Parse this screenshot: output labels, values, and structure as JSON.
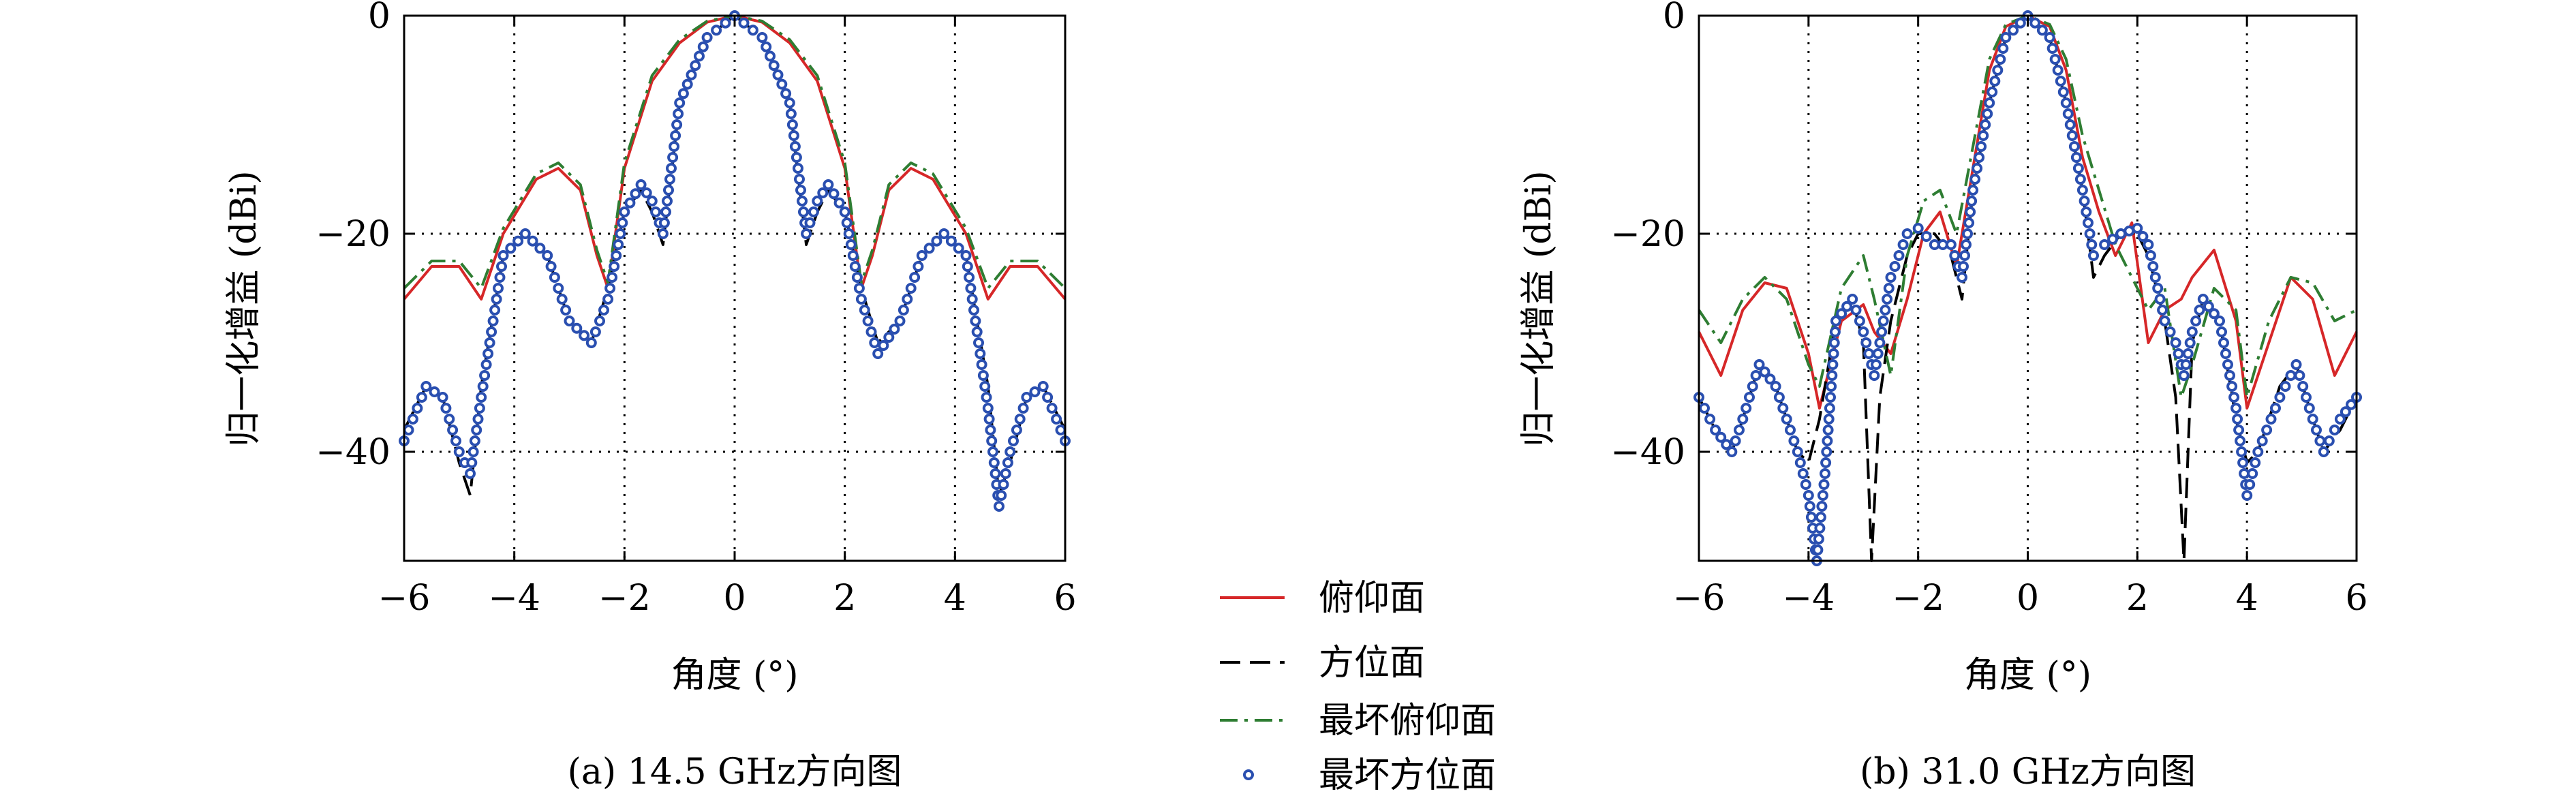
{
  "legend": {
    "entries": [
      {
        "label": "俯仰面",
        "color": "#d62728",
        "style": "solid"
      },
      {
        "label": "方位面",
        "color": "#000000",
        "style": "dashed"
      },
      {
        "label": "最坏俯仰面",
        "color": "#2e7d32",
        "style": "dashdot"
      },
      {
        "label": "最坏方位面",
        "color": "#2a4fb0",
        "style": "circles"
      }
    ],
    "placement": "bottom-center between panels"
  },
  "chart_data": [
    {
      "type": "line",
      "caption": "(a) 14.5 GHz方向图",
      "xlabel": "角度 (°)",
      "ylabel": "归一化增益 (dBi)",
      "xlim": [
        -6,
        6
      ],
      "ylim": [
        -50,
        0
      ],
      "xticks": [
        -6,
        -4,
        -2,
        0,
        2,
        4,
        6
      ],
      "yticks": [
        0,
        -20,
        -40
      ],
      "xtick_labels": [
        "−6",
        "−4",
        "−2",
        "0",
        "2",
        "4",
        "6"
      ],
      "ytick_labels": [
        "0",
        "−20",
        "−40"
      ],
      "grid": "dotted at ticks",
      "series": [
        {
          "name": "俯仰面",
          "color": "#d62728",
          "style": "solid",
          "x": [
            -6,
            -5.5,
            -5,
            -4.6,
            -4.2,
            -3.6,
            -3.2,
            -2.8,
            -2.5,
            -2.3,
            -2,
            -1.5,
            -1,
            -0.5,
            0,
            0.5,
            1,
            1.5,
            2,
            2.3,
            2.5,
            2.8,
            3.2,
            3.6,
            4.2,
            4.6,
            5,
            5.5,
            6
          ],
          "y": [
            -26,
            -23,
            -23,
            -26,
            -20,
            -15,
            -14,
            -16,
            -22,
            -25,
            -14,
            -6,
            -2.5,
            -0.6,
            0,
            -0.6,
            -2.5,
            -6,
            -14,
            -25,
            -22,
            -16,
            -14,
            -15,
            -20,
            -26,
            -23,
            -23,
            -26
          ]
        },
        {
          "name": "方位面",
          "color": "#000000",
          "style": "dashed",
          "x": [
            -6,
            -5.6,
            -5.3,
            -5,
            -4.8,
            -4.6,
            -4.2,
            -3.8,
            -3.4,
            -3,
            -2.6,
            -2.3,
            -2,
            -1.7,
            -1.5,
            -1.3,
            -1,
            -0.5,
            0,
            0.5,
            1,
            1.3,
            1.5,
            1.7,
            2,
            2.3,
            2.6,
            3,
            3.4,
            3.8,
            4.2,
            4.6,
            4.8,
            5,
            5.3,
            5.6,
            6
          ],
          "y": [
            -38,
            -34,
            -35,
            -41,
            -44,
            -34,
            -22,
            -20,
            -22,
            -28,
            -30,
            -25,
            -18,
            -16,
            -18,
            -21,
            -8,
            -2,
            0,
            -2,
            -8,
            -21,
            -18,
            -16,
            -18,
            -25,
            -30,
            -28,
            -22,
            -20,
            -22,
            -34,
            -44,
            -41,
            -35,
            -34,
            -38
          ]
        },
        {
          "name": "最坏俯仰面",
          "color": "#2e7d32",
          "style": "dashdot",
          "x": [
            -6,
            -5.5,
            -5,
            -4.6,
            -4.2,
            -3.6,
            -3.2,
            -2.8,
            -2.5,
            -2.3,
            -2,
            -1.5,
            -1,
            -0.5,
            0,
            0.5,
            1,
            1.5,
            2,
            2.3,
            2.5,
            2.8,
            3.2,
            3.6,
            4.2,
            4.6,
            5,
            5.5,
            6
          ],
          "y": [
            -25,
            -22.5,
            -22.5,
            -25,
            -19.5,
            -14.5,
            -13.5,
            -15.5,
            -21.5,
            -24.5,
            -13.5,
            -5.5,
            -2.2,
            -0.5,
            0,
            -0.5,
            -2.2,
            -5.5,
            -13.5,
            -24.5,
            -21.5,
            -15.5,
            -13.5,
            -14.5,
            -19.5,
            -25,
            -22.5,
            -22.5,
            -25
          ]
        },
        {
          "name": "最坏方位面",
          "color": "#2a4fb0",
          "style": "circles",
          "x": [
            -6,
            -5.6,
            -5.3,
            -5,
            -4.8,
            -4.6,
            -4.2,
            -3.8,
            -3.4,
            -3,
            -2.6,
            -2.3,
            -2,
            -1.7,
            -1.5,
            -1.3,
            -1,
            -0.5,
            0,
            0.5,
            1,
            1.3,
            1.5,
            1.7,
            2,
            2.3,
            2.6,
            3,
            3.4,
            3.8,
            4.2,
            4.6,
            4.8,
            5,
            5.3,
            5.6,
            6
          ],
          "y": [
            -39,
            -34,
            -35,
            -40,
            -42,
            -35,
            -22,
            -20,
            -22,
            -28,
            -30,
            -26,
            -18,
            -15.5,
            -17,
            -20,
            -8,
            -2,
            0,
            -2,
            -8,
            -20,
            -17,
            -15.5,
            -18,
            -26,
            -31,
            -28,
            -22,
            -20,
            -22,
            -36,
            -45,
            -40,
            -35,
            -34,
            -39
          ]
        }
      ]
    },
    {
      "type": "line",
      "caption": "(b) 31.0 GHz方向图",
      "xlabel": "角度 (°)",
      "ylabel": "归一化增益 (dBi)",
      "xlim": [
        -6,
        6
      ],
      "ylim": [
        -50,
        0
      ],
      "xticks": [
        -6,
        -4,
        -2,
        0,
        2,
        4,
        6
      ],
      "yticks": [
        0,
        -20,
        -40
      ],
      "xtick_labels": [
        "−6",
        "−4",
        "−2",
        "0",
        "2",
        "4",
        "6"
      ],
      "ytick_labels": [
        "0",
        "−20",
        "−40"
      ],
      "grid": "dotted at ticks",
      "series": [
        {
          "name": "俯仰面",
          "color": "#d62728",
          "style": "solid",
          "x": [
            -6,
            -5.6,
            -5.2,
            -4.8,
            -4.4,
            -4,
            -3.8,
            -3.4,
            -3,
            -2.8,
            -2.5,
            -2.2,
            -1.9,
            -1.6,
            -1.3,
            -1,
            -0.7,
            -0.4,
            0,
            0.4,
            0.7,
            1,
            1.3,
            1.6,
            1.9,
            2.2,
            2.5,
            2.8,
            3,
            3.4,
            3.8,
            4,
            4.4,
            4.8,
            5.2,
            5.6,
            6
          ],
          "y": [
            -29,
            -33,
            -27,
            -24.5,
            -25,
            -31,
            -36,
            -28,
            -26.5,
            -29,
            -31,
            -26,
            -20,
            -18,
            -23,
            -14,
            -5,
            -1,
            0,
            -1,
            -5,
            -13,
            -18,
            -22,
            -19,
            -30,
            -27,
            -26,
            -24,
            -21.5,
            -28,
            -36,
            -30,
            -24,
            -26,
            -33,
            -29
          ]
        },
        {
          "name": "方位面",
          "color": "#000000",
          "style": "dashed",
          "x": [
            -6,
            -5.7,
            -5.4,
            -5.2,
            -4.9,
            -4.6,
            -4.2,
            -4,
            -3.8,
            -3.5,
            -3.2,
            -3,
            -2.85,
            -2.7,
            -2.5,
            -2.2,
            -2,
            -1.7,
            -1.4,
            -1.2,
            -1,
            -0.7,
            -0.4,
            0,
            0.4,
            0.7,
            1,
            1.2,
            1.4,
            1.7,
            2,
            2.2,
            2.5,
            2.7,
            2.85,
            3,
            3.2,
            3.5,
            3.8,
            4,
            4.2,
            4.6,
            4.9,
            5.2,
            5.4,
            5.7,
            6
          ],
          "y": [
            -35,
            -38,
            -40,
            -37,
            -32,
            -34,
            -40,
            -41,
            -37,
            -28,
            -26,
            -30,
            -50,
            -35,
            -28,
            -22,
            -20,
            -20,
            -22,
            -26,
            -16,
            -8,
            -2,
            0,
            -2,
            -8,
            -16,
            -24,
            -22,
            -20,
            -20,
            -22,
            -28,
            -35,
            -50,
            -30,
            -26,
            -28,
            -37,
            -41,
            -40,
            -34,
            -32,
            -37,
            -40,
            -38,
            -35
          ]
        },
        {
          "name": "最坏俯仰面",
          "color": "#2e7d32",
          "style": "dashdot",
          "x": [
            -6,
            -5.6,
            -5.2,
            -4.8,
            -4.4,
            -4,
            -3.8,
            -3.4,
            -3,
            -2.8,
            -2.5,
            -2.2,
            -1.9,
            -1.6,
            -1.3,
            -1,
            -0.7,
            -0.4,
            0,
            0.4,
            0.7,
            1,
            1.3,
            1.6,
            1.9,
            2.2,
            2.5,
            2.8,
            3,
            3.4,
            3.8,
            4,
            4.4,
            4.8,
            5.2,
            5.6,
            6
          ],
          "y": [
            -27,
            -30,
            -26,
            -24,
            -26,
            -32,
            -34,
            -25,
            -22,
            -26,
            -33,
            -22,
            -17,
            -16,
            -20,
            -12,
            -4,
            -0.8,
            0,
            -0.8,
            -4,
            -11,
            -16,
            -21,
            -24,
            -27,
            -25,
            -35,
            -32,
            -25,
            -27,
            -35,
            -28,
            -24,
            -24.5,
            -28,
            -27
          ]
        },
        {
          "name": "最坏方位面",
          "color": "#2a4fb0",
          "style": "circles",
          "x": [
            -6,
            -5.7,
            -5.4,
            -5.2,
            -4.9,
            -4.6,
            -4.2,
            -4,
            -3.85,
            -3.7,
            -3.5,
            -3.2,
            -3,
            -2.8,
            -2.5,
            -2.2,
            -2,
            -1.7,
            -1.4,
            -1.2,
            -1,
            -0.7,
            -0.4,
            0,
            0.4,
            0.7,
            1,
            1.2,
            1.4,
            1.7,
            2,
            2.2,
            2.5,
            2.7,
            2.85,
            3,
            3.2,
            3.5,
            3.8,
            4,
            4.2,
            4.6,
            4.9,
            5.2,
            5.4,
            5.7,
            6
          ],
          "y": [
            -35,
            -38,
            -40,
            -37,
            -32,
            -34,
            -40,
            -44,
            -50,
            -42,
            -28,
            -26,
            -29,
            -33,
            -24,
            -20,
            -19.5,
            -21,
            -21,
            -24,
            -16,
            -8,
            -2,
            0,
            -2,
            -8,
            -16,
            -22,
            -21,
            -20,
            -19.5,
            -21,
            -28,
            -30,
            -33,
            -29,
            -26,
            -28,
            -36,
            -44,
            -40,
            -35,
            -32,
            -37,
            -40,
            -37,
            -35
          ]
        }
      ]
    }
  ]
}
